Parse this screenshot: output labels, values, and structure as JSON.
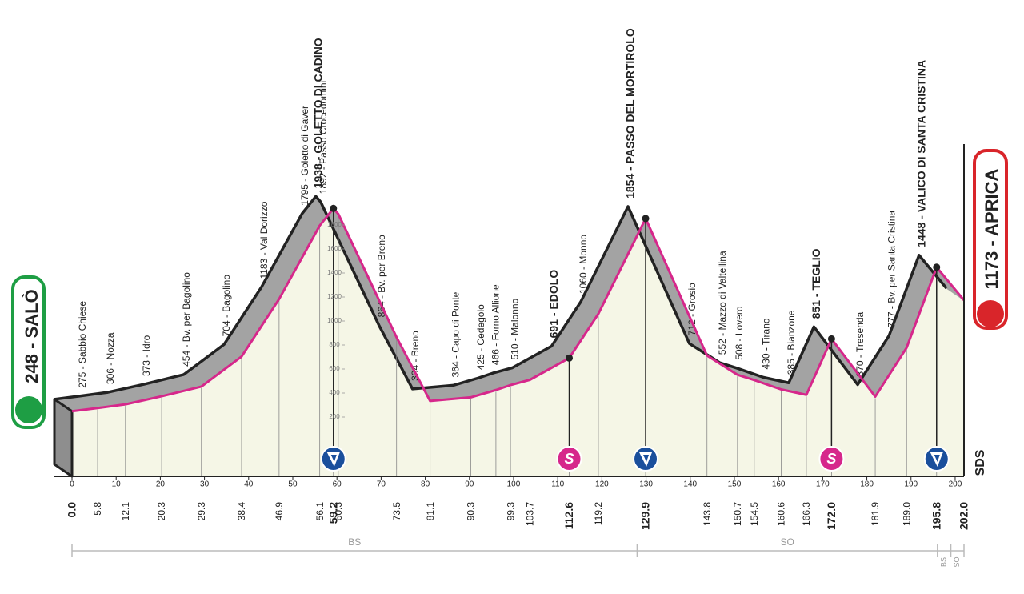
{
  "chart_data": {
    "type": "profile",
    "start": {
      "label": "248 - SALÒ"
    },
    "finish": {
      "label": "1173 - APRICA"
    },
    "xlim": [
      0,
      202
    ],
    "xticks": [
      0,
      10,
      20,
      30,
      40,
      50,
      60,
      70,
      80,
      90,
      100,
      110,
      120,
      130,
      140,
      150,
      160,
      170,
      180,
      190,
      200
    ],
    "ylim": [
      0,
      2000
    ],
    "yticks": [
      200,
      400,
      600,
      800,
      1000,
      1200,
      1400,
      1600,
      1800
    ],
    "points": [
      {
        "x": 0,
        "value": 248
      },
      {
        "x": 5.8,
        "value": 275,
        "label": "275 - Sabbio Chiese"
      },
      {
        "x": 12.1,
        "value": 306,
        "label": "306 - Nozza"
      },
      {
        "x": 20.3,
        "value": 373,
        "label": "373 - Idro"
      },
      {
        "x": 29.3,
        "value": 454,
        "label": "454 - Bv. per Bagolino"
      },
      {
        "x": 38.4,
        "value": 704,
        "label": "704 - Bagolino"
      },
      {
        "x": 46.9,
        "value": 1183,
        "label": "1183 - Val Dorizzo"
      },
      {
        "x": 56.1,
        "value": 1795,
        "label": "1795 - Goletto di Gaver"
      },
      {
        "x": 59.2,
        "value": 1938,
        "label": "1938 - GOLETTO DI CADINO",
        "bold": true,
        "icon": "gpm"
      },
      {
        "x": 60.3,
        "value": 1892,
        "label": "1892 - Passo Crocedomini"
      },
      {
        "x": 73.5,
        "value": 864,
        "label": "864 - Bv. per Breno"
      },
      {
        "x": 81.1,
        "value": 334,
        "label": "334 - Breno"
      },
      {
        "x": 90.3,
        "value": 364,
        "label": "364 - Capo di Ponte"
      },
      {
        "x": 96,
        "value": 425,
        "label": "425 - Cedegolo"
      },
      {
        "x": 99.3,
        "value": 466,
        "label": "466 - Forno Allione"
      },
      {
        "x": 103.7,
        "value": 510,
        "label": "510 - Malonno"
      },
      {
        "x": 112.6,
        "value": 691,
        "label": "691 - EDOLO",
        "bold": true,
        "icon": "sprint",
        "icon_text": "S"
      },
      {
        "x": 119.2,
        "value": 1060,
        "label": "1060 - Monno"
      },
      {
        "x": 129.9,
        "value": 1854,
        "label": "1854 - PASSO DEL MORTIROLO",
        "bold": true,
        "icon": "gpm"
      },
      {
        "x": 143.8,
        "value": 712,
        "label": "712 - Grosio"
      },
      {
        "x": 150.7,
        "value": 552,
        "label": "552 - Mazzo di Valtellina"
      },
      {
        "x": 154.5,
        "value": 508,
        "label": "508 - Lovero"
      },
      {
        "x": 160.6,
        "value": 430,
        "label": "430 - Tirano"
      },
      {
        "x": 166.3,
        "value": 385,
        "label": "385 - Bianzone"
      },
      {
        "x": 172.0,
        "value": 851,
        "label": "851 - TEGLIO",
        "bold": true,
        "icon": "sprint",
        "icon_text": "S"
      },
      {
        "x": 181.9,
        "value": 370,
        "label": "370 - Tresenda"
      },
      {
        "x": 189.0,
        "value": 777,
        "label": "777 - Bv. per Santa Cristina"
      },
      {
        "x": 195.8,
        "value": 1448,
        "label": "1448 - VALICO DI SANTA CRISTINA",
        "bold": true,
        "icon": "gpm"
      },
      {
        "x": 202.0,
        "value": 1173
      }
    ],
    "km_labels": [
      {
        "value": 0,
        "label": "0.0"
      },
      5.8,
      12.1,
      20.3,
      29.3,
      38.4,
      46.9,
      56.1,
      59.2,
      60.3,
      73.5,
      81.1,
      90.3,
      99.3,
      103.7,
      112.6,
      119.2,
      129.9,
      143.8,
      150.7,
      154.5,
      160.6,
      166.3,
      {
        "value": 172,
        "label": "172.0"
      },
      181.9,
      {
        "value": 189,
        "label": "189.0"
      },
      195.8,
      {
        "value": 202,
        "label": "202.0"
      }
    ],
    "km_bold": [
      0,
      59.2,
      112.6,
      129.9,
      172,
      195.8,
      202
    ],
    "regions": [
      {
        "label": "BS",
        "from": 0,
        "to": 128
      },
      {
        "label": "SO",
        "from": 128,
        "to": 196
      },
      {
        "label": "BS",
        "from": 196,
        "to": 199
      },
      {
        "label": "SO",
        "from": 199,
        "to": 202
      }
    ],
    "brand": "SDS"
  }
}
